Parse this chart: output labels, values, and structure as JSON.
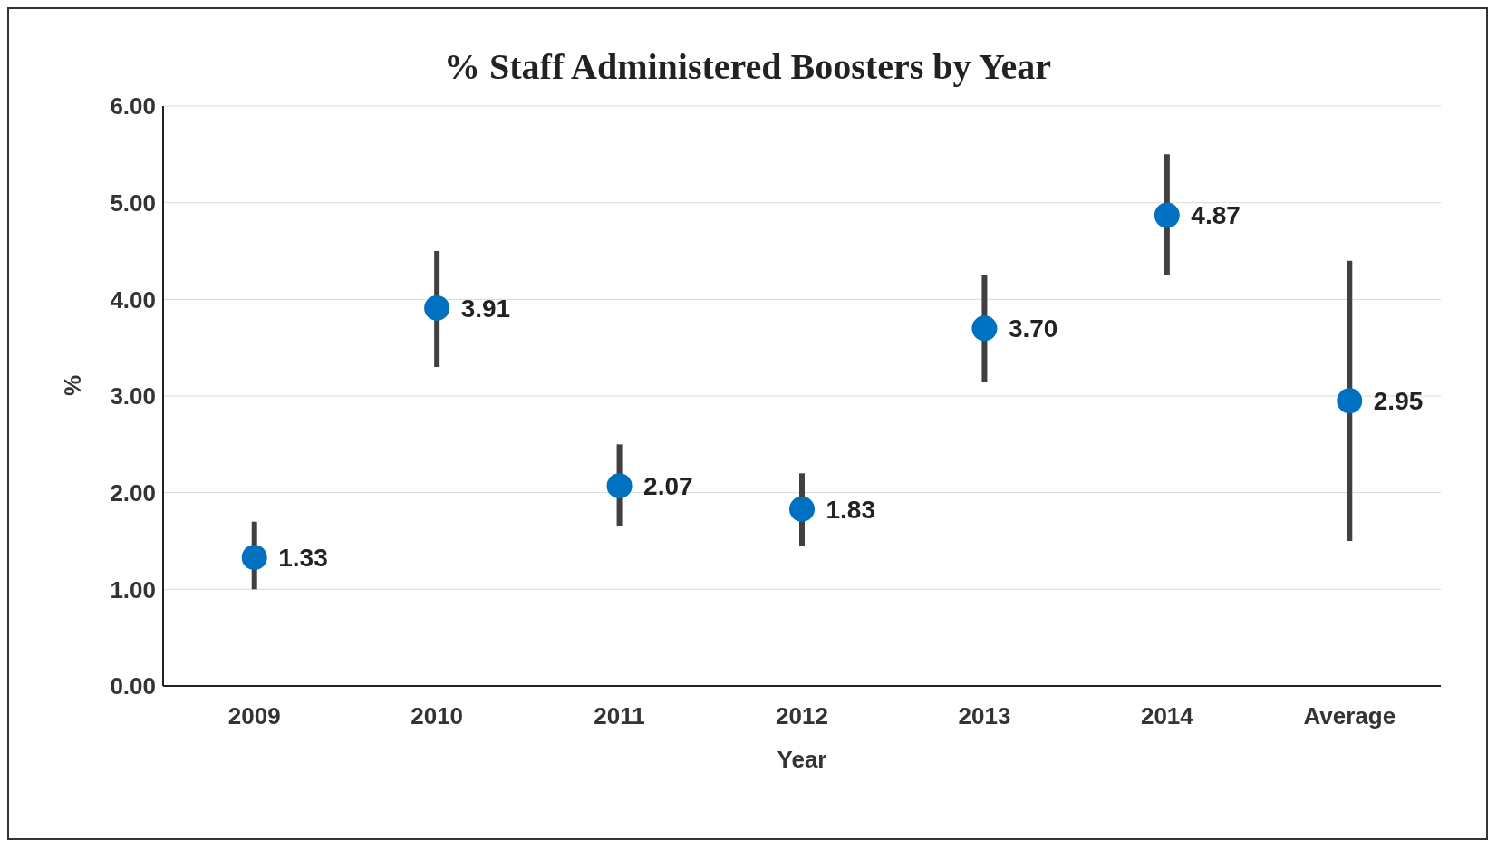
{
  "chart_data": {
    "type": "scatter",
    "title": "% Staff Administered Boosters by Year",
    "xlabel": "Year",
    "ylabel": "%",
    "categories": [
      "2009",
      "2010",
      "2011",
      "2012",
      "2013",
      "2014",
      "Average"
    ],
    "values": [
      1.33,
      3.91,
      2.07,
      1.83,
      3.7,
      4.87,
      2.95
    ],
    "value_labels": [
      "1.33",
      "3.91",
      "2.07",
      "1.83",
      "3.70",
      "4.87",
      "2.95"
    ],
    "errors": [
      [
        1.0,
        1.7
      ],
      [
        3.3,
        4.5
      ],
      [
        1.65,
        2.5
      ],
      [
        1.45,
        2.2
      ],
      [
        3.15,
        4.25
      ],
      [
        4.25,
        5.5
      ],
      [
        1.5,
        4.4
      ]
    ],
    "color": "#0070c0",
    "marker": "circle",
    "ylim": [
      0,
      6
    ],
    "yticks": [
      {
        "value": 0,
        "label": "0.00"
      },
      {
        "value": 1,
        "label": "1.00"
      },
      {
        "value": 2,
        "label": "2.00"
      },
      {
        "value": 3,
        "label": "3.00"
      },
      {
        "value": 4,
        "label": "4.00"
      },
      {
        "value": 5,
        "label": "5.00"
      },
      {
        "value": 6,
        "label": "6.00"
      }
    ],
    "grid": "y"
  }
}
